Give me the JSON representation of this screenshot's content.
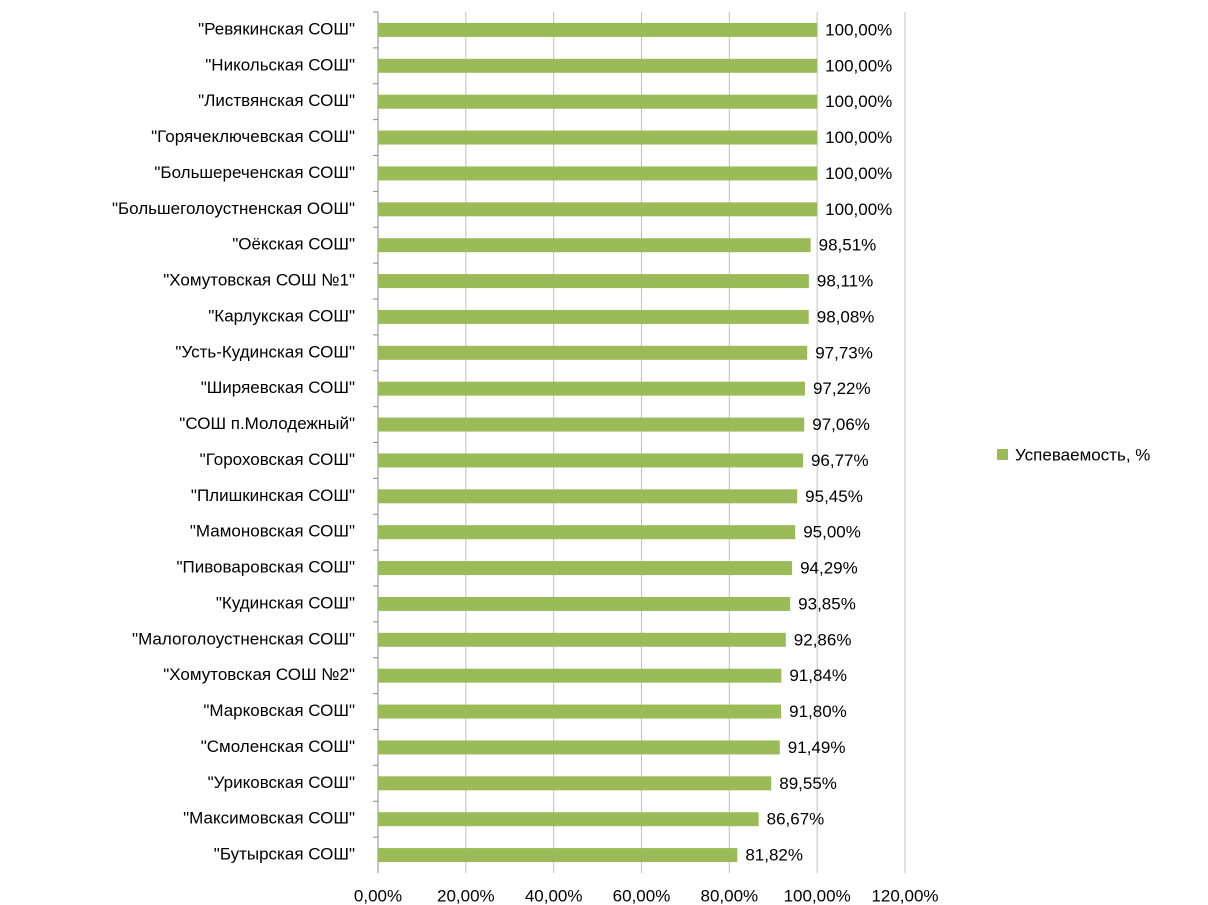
{
  "chart_data": {
    "type": "bar",
    "orientation": "horizontal",
    "categories": [
      "\"Ревякинская СОШ\"",
      "\"Никольская СОШ\"",
      "\"Листвянская СОШ\"",
      "\"Горячеключевская СОШ\"",
      "\"Большереченская СОШ\"",
      "\"Большеголоустненская ООШ\"",
      "\"Оёкская СОШ\"",
      "\"Хомутовская СОШ №1\"",
      "\"Карлукская СОШ\"",
      "\"Усть-Кудинская СОШ\"",
      "\"Ширяевская СОШ\"",
      "\"СОШ п.Молодежный\"",
      "\"Гороховская СОШ\"",
      "\"Плишкинская СОШ\"",
      "\"Мамоновская СОШ\"",
      "\"Пивоваровская СОШ\"",
      "\"Кудинская СОШ\"",
      "\"Малоголоустненская СОШ\"",
      "\"Хомутовская СОШ №2\"",
      "\"Марковская СОШ\"",
      "\"Смоленская СОШ\"",
      "\"Уриковская СОШ\"",
      "\"Максимовская СОШ\"",
      "\"Бутырская СОШ\""
    ],
    "series": [
      {
        "name": "Успеваемость, %",
        "color": "#9bbb59",
        "values": [
          100,
          100,
          100,
          100,
          100,
          100,
          98.51,
          98.11,
          98.08,
          97.73,
          97.22,
          97.06,
          96.77,
          95.45,
          95,
          94.29,
          93.85,
          92.86,
          91.84,
          91.8,
          91.49,
          89.55,
          86.67,
          81.82
        ],
        "value_labels": [
          "100,00%",
          "100,00%",
          "100,00%",
          "100,00%",
          "100,00%",
          "100,00%",
          "98,51%",
          "98,11%",
          "98,08%",
          "97,73%",
          "97,22%",
          "97,06%",
          "96,77%",
          "95,45%",
          "95,00%",
          "94,29%",
          "93,85%",
          "92,86%",
          "91,84%",
          "91,80%",
          "91,49%",
          "89,55%",
          "86,67%",
          "81,82%"
        ]
      }
    ],
    "xlim": [
      0,
      120
    ],
    "xticks": [
      {
        "value": 0,
        "label": "0,00%"
      },
      {
        "value": 20,
        "label": "20,00%"
      },
      {
        "value": 40,
        "label": "40,00%"
      },
      {
        "value": 60,
        "label": "60,00%"
      },
      {
        "value": 80,
        "label": "80,00%"
      },
      {
        "value": 100,
        "label": "100,00%"
      },
      {
        "value": 120,
        "label": "120,00%"
      }
    ],
    "grid": true,
    "legend": "right"
  }
}
